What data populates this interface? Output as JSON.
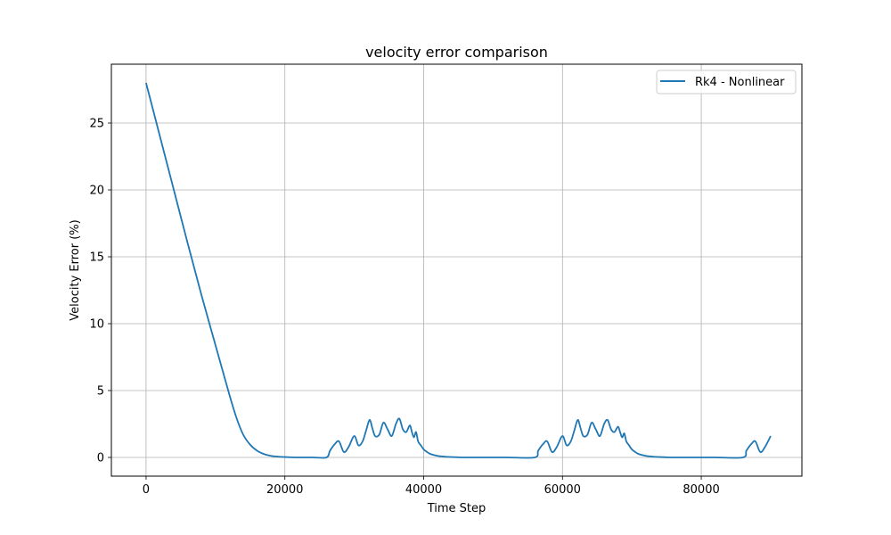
{
  "chart_data": {
    "type": "line",
    "title": "velocity error comparison",
    "xlabel": "Time Step",
    "ylabel": "Velocity Error (%)",
    "xlim": [
      -5000,
      94500
    ],
    "ylim": [
      -1.4,
      29.4
    ],
    "xticks": [
      0,
      20000,
      40000,
      60000,
      80000
    ],
    "yticks": [
      0,
      5,
      10,
      15,
      20,
      25
    ],
    "grid": true,
    "legend_position": "top-right",
    "colors": {
      "series": "#1f77b4",
      "grid": "#b0b0b0"
    },
    "series": [
      {
        "name": "Rk4 - Nonlinear",
        "x": [
          0,
          2000,
          4000,
          6000,
          8000,
          10000,
          12000,
          13000,
          14000,
          15000,
          16000,
          17000,
          18000,
          19000,
          20000,
          21000,
          22000,
          24000,
          26000,
          26500,
          27200,
          27800,
          28500,
          29200,
          30000,
          30600,
          31200,
          31700,
          32200,
          32600,
          33000,
          33600,
          34200,
          34800,
          35400,
          36000,
          36500,
          37000,
          37500,
          38000,
          38300,
          38600,
          38900,
          39200,
          39600,
          40000,
          40500,
          41000,
          42000,
          43000,
          44000,
          45000,
          46000,
          48000,
          52000,
          56000,
          56500,
          57200,
          57800,
          58500,
          59200,
          60000,
          60600,
          61200,
          61700,
          62200,
          62600,
          63000,
          63600,
          64200,
          64800,
          65400,
          66000,
          66500,
          67000,
          67500,
          68000,
          68300,
          68600,
          68900,
          69200,
          69600,
          70000,
          70500,
          71000,
          72000,
          73000,
          74000,
          75000,
          76000,
          78000,
          82000,
          86000,
          86500,
          87200,
          87800,
          88500,
          89200,
          90000
        ],
        "y": [
          28.0,
          24.0,
          20.0,
          16.0,
          12.1,
          8.4,
          4.7,
          3.0,
          1.7,
          0.95,
          0.5,
          0.25,
          0.12,
          0.06,
          0.03,
          0.01,
          0.0,
          0.0,
          0.0,
          0.5,
          1.0,
          1.2,
          0.4,
          0.8,
          1.6,
          0.9,
          1.2,
          2.0,
          2.8,
          2.2,
          1.6,
          1.7,
          2.6,
          2.1,
          1.6,
          2.5,
          2.9,
          2.1,
          1.9,
          2.4,
          1.9,
          1.5,
          1.9,
          1.2,
          0.9,
          0.6,
          0.4,
          0.25,
          0.12,
          0.06,
          0.03,
          0.01,
          0.0,
          0.0,
          0.0,
          0.0,
          0.5,
          1.0,
          1.2,
          0.4,
          0.8,
          1.6,
          0.9,
          1.2,
          2.0,
          2.8,
          2.2,
          1.6,
          1.7,
          2.6,
          2.1,
          1.6,
          2.5,
          2.8,
          2.1,
          1.9,
          2.3,
          1.9,
          1.5,
          1.8,
          1.2,
          0.9,
          0.6,
          0.4,
          0.25,
          0.12,
          0.06,
          0.03,
          0.01,
          0.0,
          0.0,
          0.0,
          0.0,
          0.5,
          1.0,
          1.2,
          0.4,
          0.8,
          1.6
        ]
      }
    ]
  }
}
